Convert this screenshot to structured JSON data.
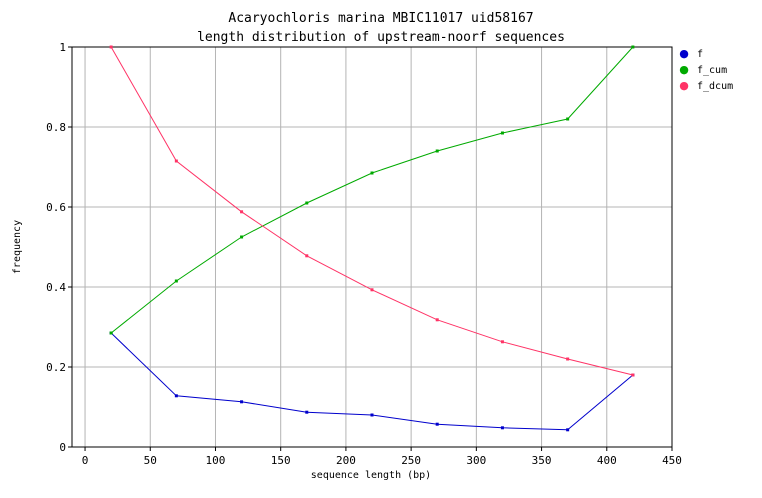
{
  "chart_data": {
    "type": "line",
    "title": "Acaryochloris marina MBIC11017 uid58167",
    "subtitle": "length distribution of upstream-noorf sequences",
    "xlabel": "sequence length (bp)",
    "ylabel": "frequency",
    "xlim": [
      -10,
      450
    ],
    "ylim": [
      0,
      1
    ],
    "xticks": [
      0,
      50,
      100,
      150,
      200,
      250,
      300,
      350,
      400,
      450
    ],
    "yticks": [
      0,
      0.2,
      0.4,
      0.6,
      0.8,
      1
    ],
    "ytick_labels": [
      "0",
      "0.2",
      "0.4",
      "0.6",
      "0.8",
      "1"
    ],
    "grid": true,
    "legend_position": "top-right",
    "x": [
      20,
      70,
      120,
      170,
      220,
      270,
      320,
      370,
      420
    ],
    "series": [
      {
        "name": "f",
        "color": "#0000cc",
        "values": [
          0.285,
          0.128,
          0.113,
          0.087,
          0.08,
          0.057,
          0.048,
          0.043,
          0.18
        ]
      },
      {
        "name": "f_cum",
        "color": "#00aa00",
        "values": [
          0.285,
          0.415,
          0.525,
          0.61,
          0.685,
          0.74,
          0.785,
          0.82,
          1.0
        ]
      },
      {
        "name": "f_dcum",
        "color": "#ff3366",
        "values": [
          1.0,
          0.715,
          0.588,
          0.478,
          0.393,
          0.318,
          0.263,
          0.22,
          0.18
        ]
      }
    ]
  }
}
